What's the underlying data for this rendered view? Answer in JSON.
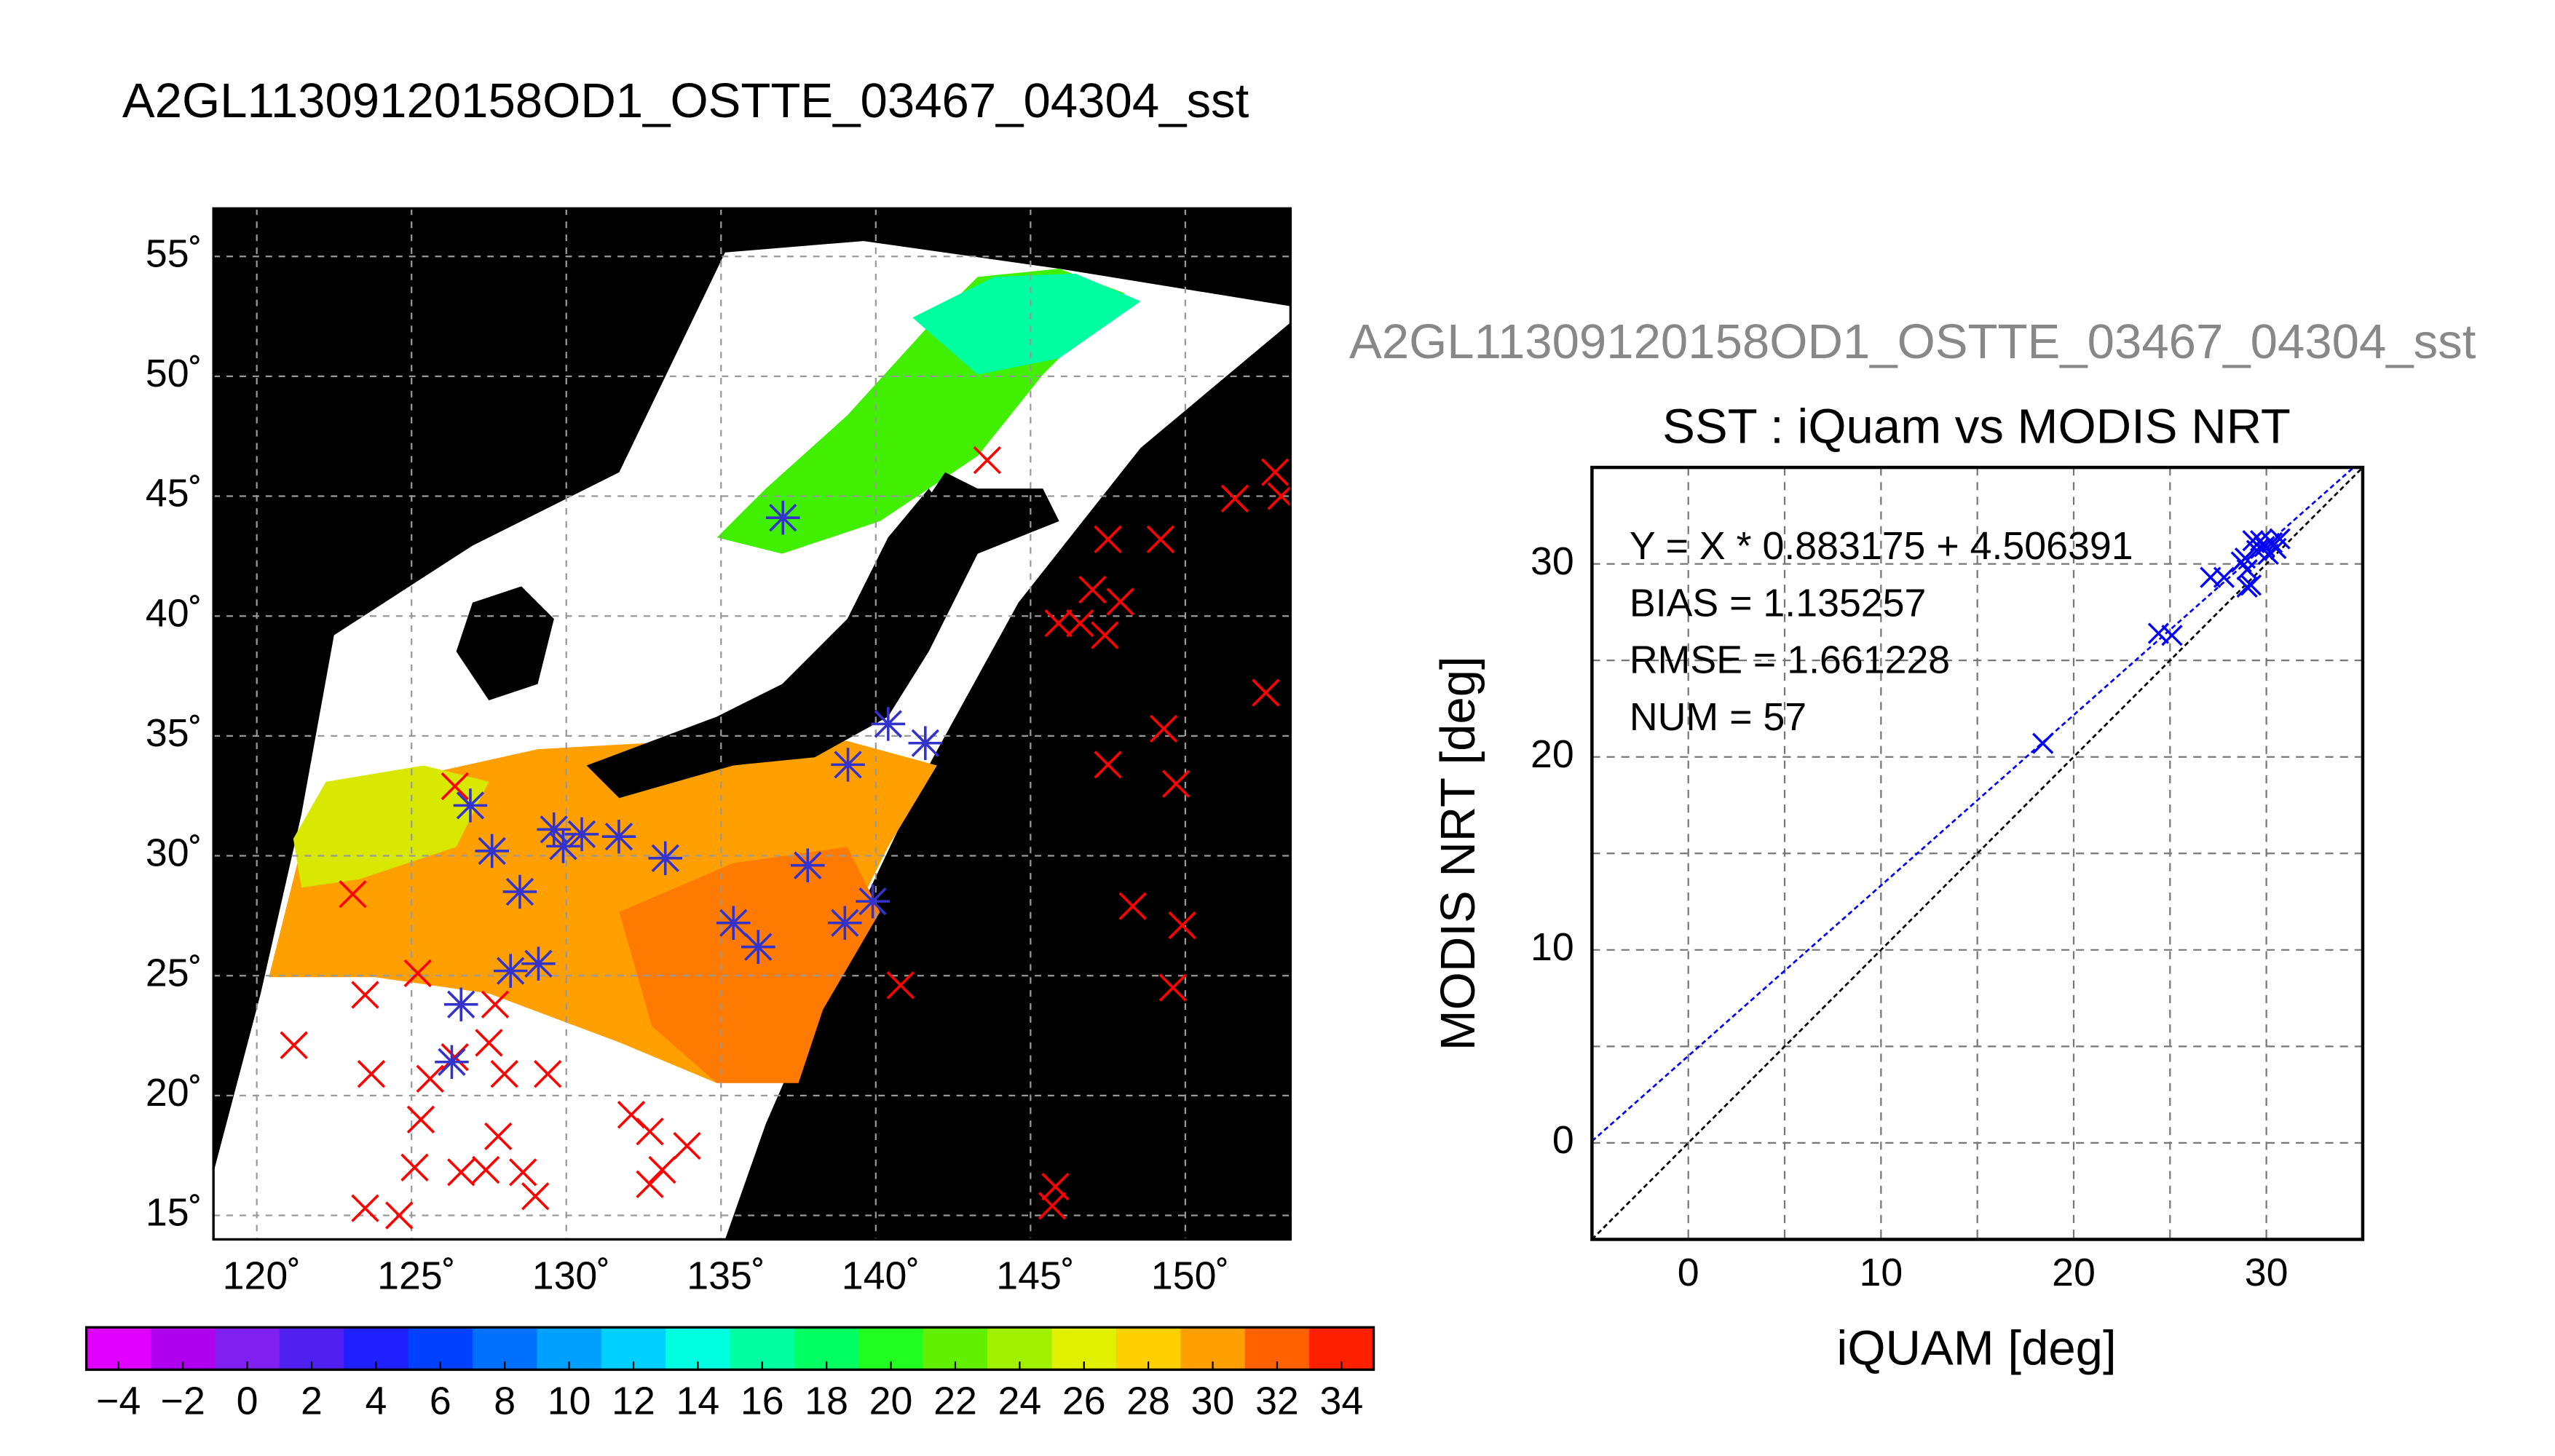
{
  "title": "A2GL11309120158OD1_OSTTE_03467_04304_sst",
  "chart_data": [
    {
      "type": "map",
      "xlim": [
        118.6,
        153.4
      ],
      "ylim": [
        14,
        57
      ],
      "xticks": [
        {
          "value": 120,
          "label": "120˚"
        },
        {
          "value": 125,
          "label": "125˚"
        },
        {
          "value": 130,
          "label": "130˚"
        },
        {
          "value": 135,
          "label": "135˚"
        },
        {
          "value": 140,
          "label": "140˚"
        },
        {
          "value": 145,
          "label": "145˚"
        },
        {
          "value": 150,
          "label": "150˚"
        }
      ],
      "yticks": [
        {
          "value": 15,
          "label": "15˚"
        },
        {
          "value": 20,
          "label": "20˚"
        },
        {
          "value": 25,
          "label": "25˚"
        },
        {
          "value": 30,
          "label": "30˚"
        },
        {
          "value": 35,
          "label": "35˚"
        },
        {
          "value": 40,
          "label": "40˚"
        },
        {
          "value": 45,
          "label": "45˚"
        },
        {
          "value": 50,
          "label": "50˚"
        },
        {
          "value": 55,
          "label": "55˚"
        }
      ],
      "grid": true,
      "series": [
        {
          "color": "#ff0000",
          "marker": "x",
          "x": [
            143.6,
            152.9,
            151.6,
            153.1,
            147.5,
            149.2,
            147.0,
            147.9,
            145.9,
            146.6,
            147.4,
            152.6,
            149.3,
            147.5,
            149.7,
            148.3,
            149.9,
            149.6,
            140.8,
            145.8,
            145.7,
            126.4,
            123.1,
            123.5,
            121.2,
            125.2,
            123.7,
            125.6,
            125.3,
            125.1,
            126.4,
            127.5,
            128.0,
            129.4,
            127.8,
            126.6,
            127.4,
            128.6,
            129.0,
            132.1,
            132.7,
            133.9,
            132.7,
            133.1,
            123.5,
            124.6,
            127.7
          ],
          "y": [
            46.5,
            46.0,
            44.9,
            45.0,
            43.2,
            43.2,
            41.1,
            40.6,
            39.7,
            39.7,
            39.2,
            36.8,
            35.3,
            33.8,
            33.0,
            27.9,
            27.1,
            24.5,
            24.6,
            16.2,
            15.4,
            32.9,
            28.4,
            24.2,
            22.1,
            25.1,
            20.9,
            20.7,
            19.0,
            17.0,
            21.6,
            22.2,
            20.9,
            20.9,
            18.3,
            16.8,
            16.9,
            16.8,
            15.8,
            19.2,
            18.5,
            17.9,
            16.3,
            16.9,
            15.3,
            15.0,
            23.8
          ]
        },
        {
          "color": "#3333cc",
          "marker": "asterisk",
          "x": [
            137.0,
            140.4,
            141.6,
            139.1,
            126.9,
            127.6,
            129.6,
            129.9,
            130.5,
            131.7,
            133.2,
            137.8,
            139.9,
            139.0,
            135.4,
            136.2,
            128.5,
            129.1,
            128.2,
            126.6,
            126.3
          ],
          "y": [
            44.1,
            35.5,
            34.7,
            33.8,
            32.1,
            30.2,
            31.1,
            30.4,
            30.9,
            30.8,
            29.9,
            29.6,
            28.1,
            27.2,
            27.2,
            26.2,
            28.5,
            25.5,
            25.2,
            23.8,
            21.4
          ]
        }
      ],
      "colorbar": {
        "lim": [
          -5,
          35
        ],
        "ticks": [
          {
            "value": -4,
            "label": "−4"
          },
          {
            "value": -2,
            "label": "−2"
          },
          0,
          2,
          4,
          6,
          8,
          10,
          12,
          14,
          16,
          18,
          20,
          22,
          24,
          26,
          28,
          30,
          32,
          34
        ],
        "colors": [
          "#e000ff",
          "#b000f0",
          "#8020f0",
          "#5020f0",
          "#2020ff",
          "#0040ff",
          "#0070ff",
          "#00a0ff",
          "#00d0ff",
          "#00ffe0",
          "#00ffa0",
          "#00ff60",
          "#20ff20",
          "#60f000",
          "#a0f000",
          "#e0f000",
          "#ffd000",
          "#ffa000",
          "#ff6000",
          "#ff2000"
        ]
      }
    },
    {
      "type": "scatter",
      "subtitle": "A2GL11309120158OD1_OSTTE_03467_04304_sst",
      "title": "SST : iQuam vs MODIS NRT",
      "xlabel": "iQUAM [deg]",
      "ylabel": "MODIS NRT [deg]",
      "xlim": [
        -5,
        35
      ],
      "ylim": [
        -5,
        35
      ],
      "xticks": [
        0,
        10,
        20,
        30
      ],
      "yticks": [
        0,
        10,
        20,
        30
      ],
      "minor_ticks": [
        5,
        15,
        25
      ],
      "grid": true,
      "annotations": [
        "Y = X * 0.883175 + 4.506391",
        "BIAS = 1.135257",
        "RMSE = 1.661228",
        "NUM = 57"
      ],
      "fit": {
        "slope": 0.883175,
        "intercept": 4.506391,
        "color": "#0000ff"
      },
      "series": [
        {
          "color": "#0000ff",
          "x": [
            18.4,
            24.4,
            25.1,
            27.1,
            27.8,
            29.2,
            29.0,
            28.9,
            29.5,
            29.9,
            30.3,
            30.7,
            29.7,
            30.1,
            28.7,
            29.3,
            30.5,
            29.0
          ],
          "y": [
            20.7,
            26.4,
            26.3,
            29.3,
            29.3,
            28.9,
            29.7,
            30.3,
            30.7,
            30.9,
            31.1,
            31.3,
            31.2,
            30.5,
            30.1,
            31.2,
            30.8,
            28.8
          ]
        }
      ]
    }
  ]
}
